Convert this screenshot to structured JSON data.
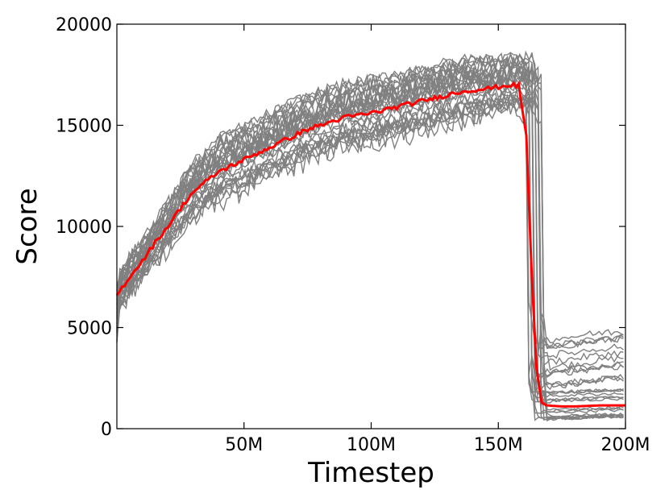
{
  "chart_data": {
    "type": "line",
    "xlabel": "Timestep",
    "ylabel": "Score",
    "xlim": [
      0,
      200
    ],
    "ylim": [
      0,
      20000
    ],
    "x_unit": "M",
    "x_ticks": [
      50,
      100,
      150,
      200
    ],
    "x_tick_labels": [
      "50M",
      "100M",
      "150M",
      "200M"
    ],
    "y_ticks": [
      0,
      5000,
      10000,
      15000,
      20000
    ],
    "y_tick_labels": [
      "0",
      "5000",
      "10000",
      "15000",
      "20000"
    ],
    "grid": false,
    "legend": "none",
    "series_style": {
      "individual_runs_color": "#808080",
      "mean_color": "#ff0000"
    },
    "individual_runs": {
      "count": 30,
      "x": [
        0,
        10,
        20,
        30,
        40,
        50,
        60,
        70,
        80,
        90,
        100,
        110,
        120,
        130,
        140,
        150,
        158,
        162,
        166,
        170,
        180,
        190,
        200
      ],
      "envelope_low": [
        4200,
        5800,
        7800,
        9000,
        10000,
        10500,
        11200,
        11800,
        12400,
        12700,
        13000,
        13200,
        13500,
        13800,
        14200,
        14800,
        14600,
        500,
        400,
        400,
        400,
        400,
        400
      ],
      "envelope_high": [
        7600,
        9500,
        12000,
        14500,
        16200,
        16800,
        17500,
        18200,
        18700,
        19000,
        19300,
        19500,
        19700,
        19800,
        20000,
        20000,
        20000,
        2500,
        2200,
        4300,
        4500,
        4700,
        5000
      ]
    },
    "series": [
      {
        "x": [
          0,
          5,
          10,
          15,
          20,
          25,
          30,
          35,
          40,
          45,
          50,
          55,
          60,
          65,
          70,
          75,
          80,
          85,
          90,
          95,
          100,
          105,
          110,
          115,
          120,
          125,
          130,
          135,
          140,
          145,
          150,
          155,
          158,
          161,
          163,
          165,
          167,
          169,
          175,
          180,
          190,
          200
        ],
        "values": [
          6600,
          7500,
          8300,
          9200,
          10000,
          10900,
          11700,
          12200,
          12700,
          13000,
          13300,
          13600,
          13900,
          14200,
          14500,
          14800,
          15000,
          15200,
          15400,
          15500,
          15600,
          15750,
          15900,
          16050,
          16200,
          16350,
          16500,
          16650,
          16750,
          16800,
          16900,
          17000,
          16950,
          14500,
          8000,
          3000,
          1300,
          1150,
          1100,
          1100,
          1150,
          1150
        ]
      }
    ]
  }
}
